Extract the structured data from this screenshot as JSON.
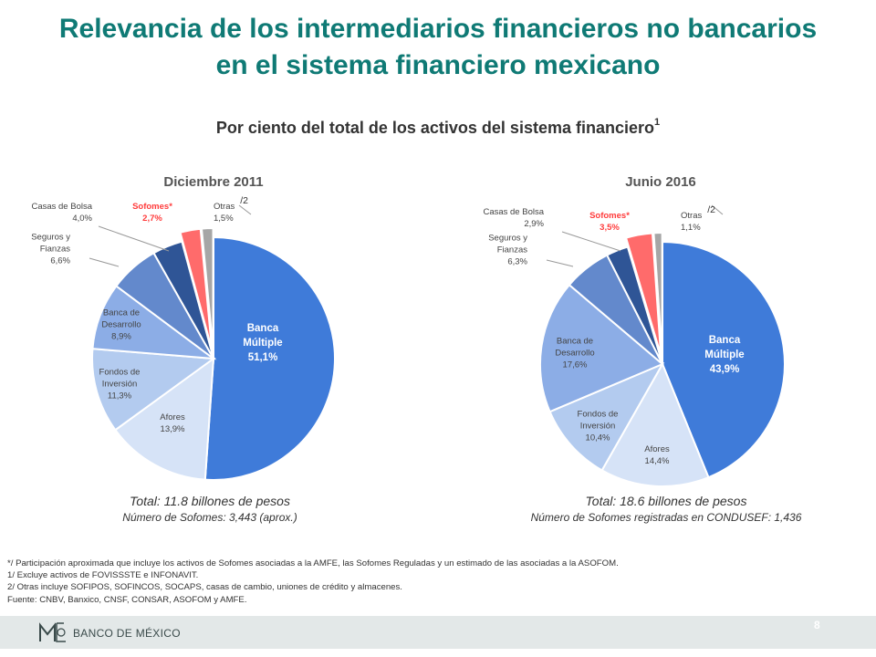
{
  "header": {
    "title_line1": "Relevancia de los intermediarios financieros no bancarios",
    "title_line2": "en el sistema financiero mexicano",
    "subtitle": "Por ciento del total de los activos del sistema financiero",
    "subtitle_sup": "1"
  },
  "colors": {
    "title": "#0f7a75",
    "highlight_label": "#ff3b3b"
  },
  "chart_data": [
    {
      "type": "pie",
      "title": "Diciembre 2011",
      "start": "12 o'clock, clockwise",
      "slices": [
        {
          "name_lines": [
            "Banca",
            "Múltiple"
          ],
          "value_label": "51,1%",
          "value": 51.1,
          "color": "#3f7bd9"
        },
        {
          "name_lines": [
            "Afores"
          ],
          "value_label": "13,9%",
          "value": 13.9,
          "color": "#d6e3f7"
        },
        {
          "name_lines": [
            "Fondos de",
            "Inversión"
          ],
          "value_label": "11,3%",
          "value": 11.3,
          "color": "#b3cbef"
        },
        {
          "name_lines": [
            "Banca de",
            "Desarrollo"
          ],
          "value_label": "8,9%",
          "value": 8.9,
          "color": "#8cade6"
        },
        {
          "name_lines": [
            "Seguros y",
            "Fianzas"
          ],
          "value_label": "6,6%",
          "value": 6.6,
          "color": "#6389cc"
        },
        {
          "name_lines": [
            "Casas de Bolsa"
          ],
          "value_label": "4,0%",
          "value": 4.0,
          "color": "#2f5596"
        },
        {
          "name_lines": [
            "Sofomes*"
          ],
          "value_label": "2,7%",
          "value": 2.7,
          "color": "#ff6b6b",
          "highlight": true,
          "exploded": true
        },
        {
          "name_lines": [
            "Otras"
          ],
          "name_suffix": "/2",
          "value_label": "1,5%",
          "value": 1.5,
          "color": "#a6a6a6",
          "exploded": true
        }
      ],
      "total": "Total: 11.8 billones de pesos",
      "note": "Número de Sofomes: 3,443 (aprox.)"
    },
    {
      "type": "pie",
      "title": "Junio 2016",
      "start": "12 o'clock, clockwise",
      "slices": [
        {
          "name_lines": [
            "Banca",
            "Múltiple"
          ],
          "value_label": "43,9%",
          "value": 43.9,
          "color": "#3f7bd9"
        },
        {
          "name_lines": [
            "Afores"
          ],
          "value_label": "14,4%",
          "value": 14.4,
          "color": "#d6e3f7"
        },
        {
          "name_lines": [
            "Fondos de",
            "Inversión"
          ],
          "value_label": "10,4%",
          "value": 10.4,
          "color": "#b3cbef"
        },
        {
          "name_lines": [
            "Banca de",
            "Desarrollo"
          ],
          "value_label": "17,6%",
          "value": 17.6,
          "color": "#8cade6"
        },
        {
          "name_lines": [
            "Seguros y",
            "Fianzas"
          ],
          "value_label": "6,3%",
          "value": 6.3,
          "color": "#6389cc"
        },
        {
          "name_lines": [
            "Casas de Bolsa"
          ],
          "value_label": "2,9%",
          "value": 2.9,
          "color": "#2f5596"
        },
        {
          "name_lines": [
            "Sofomes*"
          ],
          "value_label": "3,5%",
          "value": 3.5,
          "color": "#ff6b6b",
          "highlight": true,
          "exploded": true
        },
        {
          "name_lines": [
            "Otras"
          ],
          "name_suffix": "/2",
          "value_label": "1,1%",
          "value": 1.1,
          "color": "#a6a6a6",
          "exploded": true
        }
      ],
      "total": "Total: 18.6 billones de pesos",
      "note": "Número de Sofomes registradas en CONDUSEF: 1,436"
    }
  ],
  "footnotes": [
    "*/ Participación aproximada que incluye los activos de Sofomes asociadas a la AMFE, las Sofomes Reguladas y un estimado de las asociadas a la ASOFOM.",
    "1/ Excluye activos de FOVISSSTE e INFONAVIT.",
    "2/ Otras incluye SOFIPOS, SOFINCOS, SOCAPS, casas de cambio, uniones de crédito y almacenes.",
    "Fuente: CNBV, Banxico, CNSF, CONSAR, ASOFOM y AMFE."
  ],
  "footer": {
    "logo_text": "BANCO DE MÉXICO",
    "page_number": "8"
  }
}
